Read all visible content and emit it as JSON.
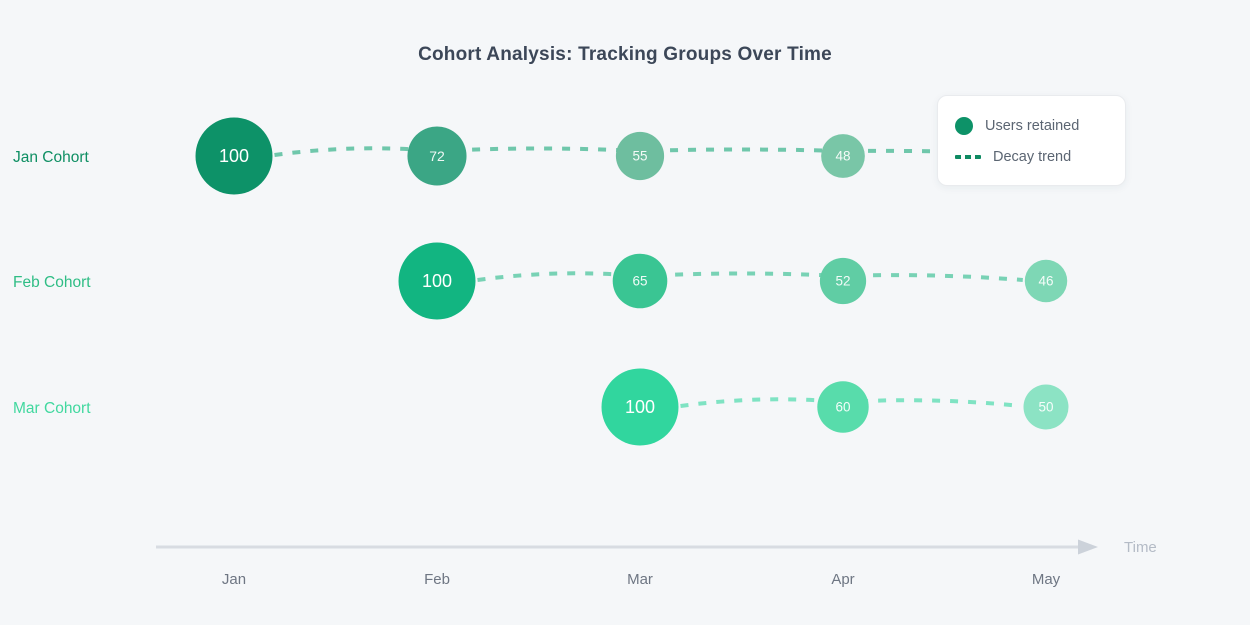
{
  "title": "Cohort Analysis: Tracking Groups Over Time",
  "axis": {
    "label": "Time",
    "months": [
      "Jan",
      "Feb",
      "Mar",
      "Apr",
      "May"
    ],
    "line_color": "#d8dce2",
    "arrow_color": "#ccd2da"
  },
  "legend": {
    "items": [
      {
        "label": "Users retained",
        "marker": "circle",
        "color": "#0d9268"
      },
      {
        "label": "Decay trend",
        "marker": "dashes",
        "color": "#0e8a62"
      }
    ]
  },
  "chart_data": {
    "type": "scatter",
    "subtype": "bubble-cohort-timeline",
    "title": "Cohort Analysis: Tracking Groups Over Time",
    "xlabel": "Time",
    "x_categories": [
      "Jan",
      "Feb",
      "Mar",
      "Apr",
      "May"
    ],
    "grid": false,
    "legend_position": "top-right",
    "series": [
      {
        "name": "Jan Cohort",
        "label_color": "#0e8f63",
        "x": [
          "Jan",
          "Feb",
          "Mar",
          "Apr"
        ],
        "values": [
          100,
          72,
          55,
          48
        ],
        "bubble_colors": [
          "#0d9268",
          "#3ba685",
          "#6ebe9f",
          "#79c6a7"
        ],
        "trend_color": "rgba(14,163,113,0.58)",
        "trend_extends_to": "May"
      },
      {
        "name": "Feb Cohort",
        "label_color": "#2fbd85",
        "x": [
          "Feb",
          "Mar",
          "Apr",
          "May"
        ],
        "values": [
          100,
          65,
          52,
          46
        ],
        "bubble_colors": [
          "#12b581",
          "#3ac593",
          "#60cda4",
          "#7ed7b5"
        ],
        "trend_color": "rgba(16,180,125,0.55)",
        "trend_extends_to": null
      },
      {
        "name": "Mar Cohort",
        "label_color": "#41d89f",
        "x": [
          "Mar",
          "Apr",
          "May"
        ],
        "values": [
          100,
          60,
          50
        ],
        "bubble_colors": [
          "#31d69e",
          "#58dcab",
          "#8ce3c4"
        ],
        "trend_color": "rgba(49,214,158,0.60)",
        "trend_extends_to": null
      }
    ]
  }
}
